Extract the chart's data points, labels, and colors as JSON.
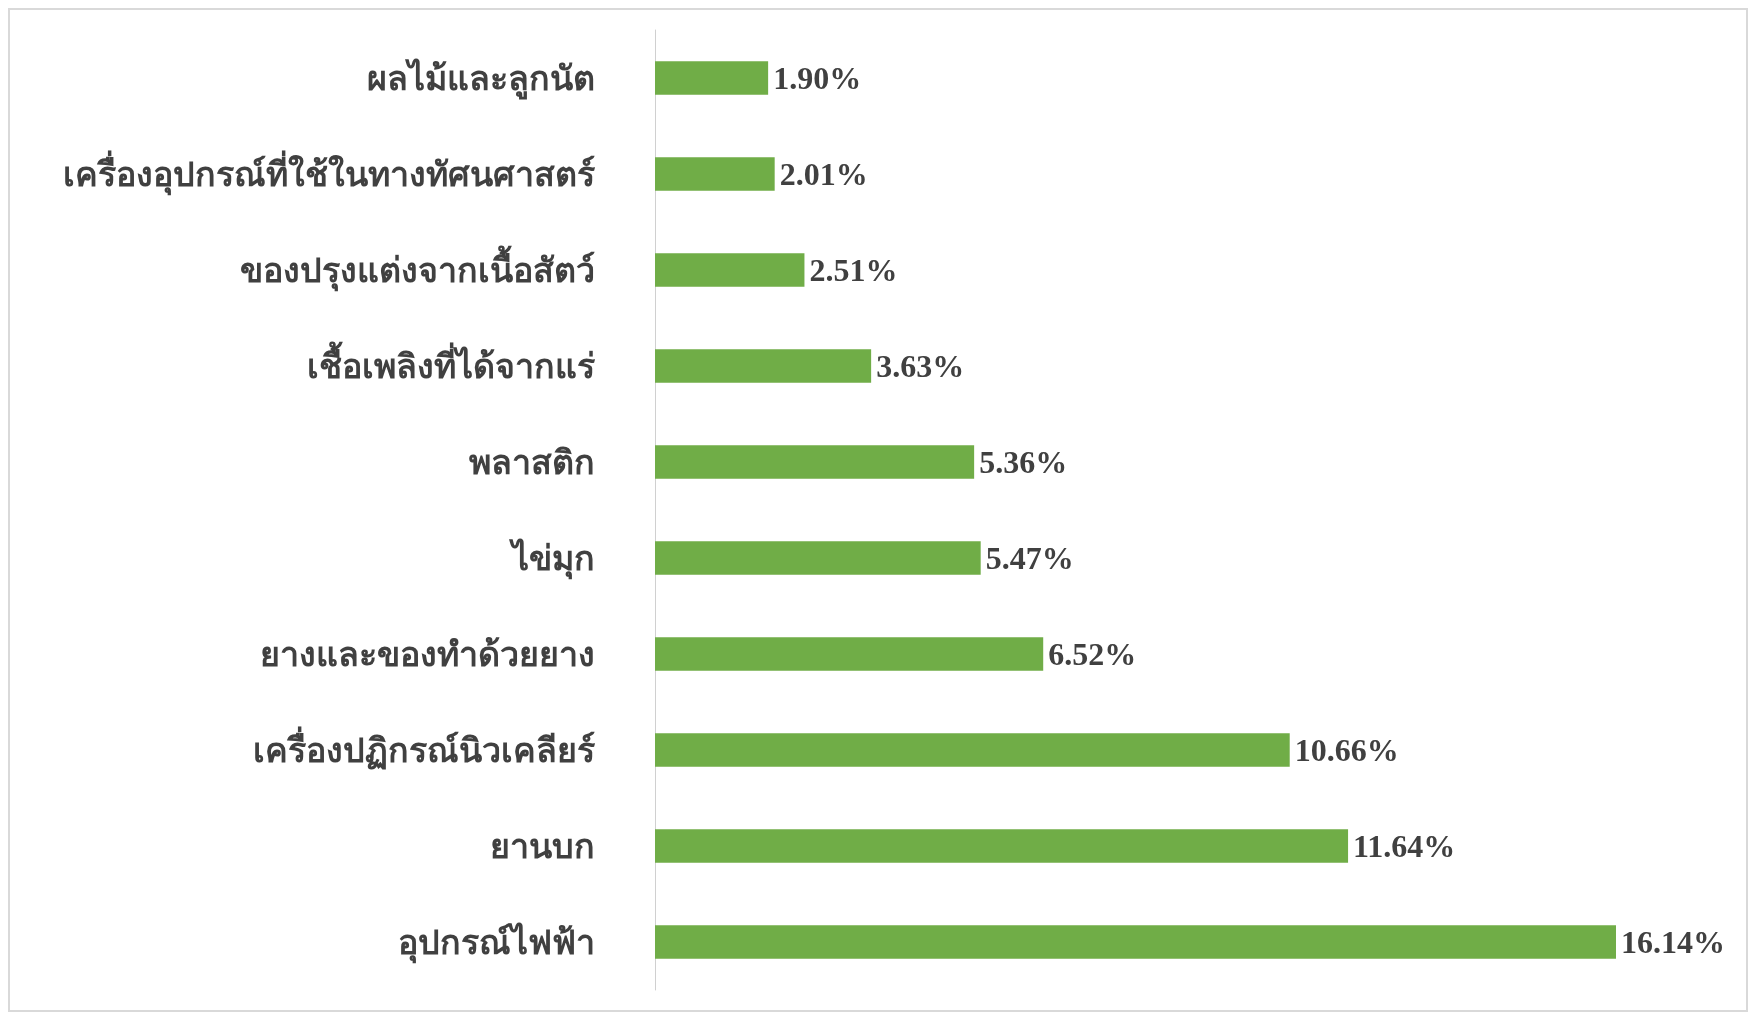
{
  "chart_data": {
    "type": "bar",
    "orientation": "horizontal",
    "categories": [
      "ผลไม้และลูกนัต",
      "เครื่องอุปกรณ์ที่ใช้ในทางทัศนศาสตร์",
      "ของปรุงแต่งจากเนื้อสัตว์",
      "เชื้อเพลิงที่ได้จากแร่",
      "พลาสติก",
      "ไข่มุก",
      "ยางและของทำด้วยยาง",
      "เครื่องปฏิกรณ์นิวเคลียร์",
      "ยานบก",
      "อุปกรณ์ไฟฟ้า"
    ],
    "values": [
      1.9,
      2.01,
      2.51,
      3.63,
      5.36,
      5.47,
      6.52,
      10.66,
      11.64,
      16.14
    ],
    "value_labels": [
      "1.90%",
      "2.01%",
      "2.51%",
      "3.63%",
      "5.36%",
      "5.47%",
      "6.52%",
      "10.66%",
      "11.64%",
      "16.14%"
    ],
    "color": "#70ad47"
  }
}
